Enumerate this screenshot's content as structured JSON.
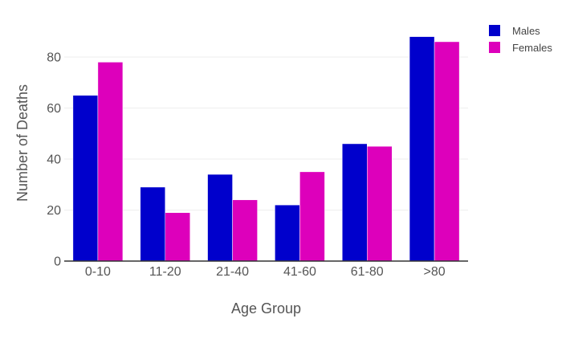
{
  "chart_data": {
    "type": "bar",
    "categories": [
      "0-10",
      "11-20",
      "21-40",
      "41-60",
      "61-80",
      ">80"
    ],
    "series": [
      {
        "name": "Males",
        "color": "#0000cc",
        "values": [
          65,
          29,
          34,
          22,
          46,
          88
        ]
      },
      {
        "name": "Females",
        "color": "#dd00bb",
        "values": [
          78,
          19,
          24,
          35,
          45,
          86
        ]
      }
    ],
    "xlabel": "Age Group",
    "ylabel": "Number of Deaths",
    "ylim": [
      0,
      92.6
    ],
    "yticks": [
      0,
      20,
      40,
      60,
      80
    ],
    "grid": true,
    "legend_position": "top-right"
  }
}
